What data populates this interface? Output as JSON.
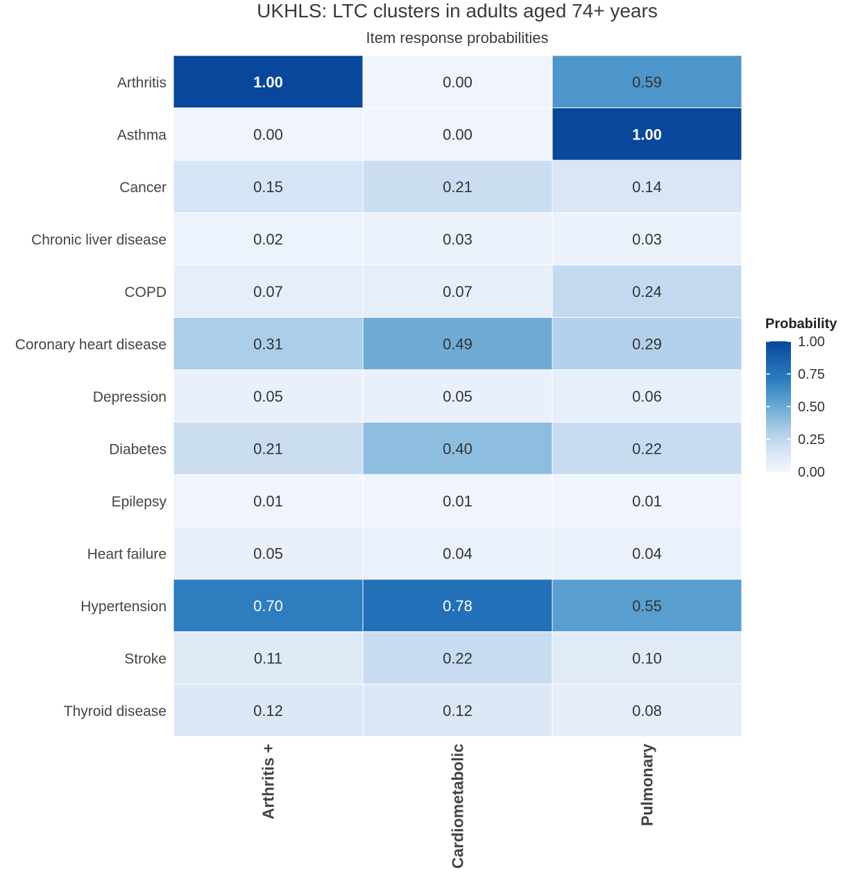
{
  "chart_data": {
    "type": "heatmap",
    "title": "UKHLS: LTC clusters in adults aged 74+ years",
    "subtitle": "Item response probabilities",
    "rows": [
      "Arthritis",
      "Asthma",
      "Cancer",
      "Chronic liver disease",
      "COPD",
      "Coronary heart disease",
      "Depression",
      "Diabetes",
      "Epilepsy",
      "Heart failure",
      "Hypertension",
      "Stroke",
      "Thyroid disease"
    ],
    "columns": [
      "Arthritis +",
      "Cardiometabolic",
      "Pulmonary"
    ],
    "values": [
      [
        1.0,
        0.0,
        0.59
      ],
      [
        0.0,
        0.0,
        1.0
      ],
      [
        0.15,
        0.21,
        0.14
      ],
      [
        0.02,
        0.03,
        0.03
      ],
      [
        0.07,
        0.07,
        0.24
      ],
      [
        0.31,
        0.49,
        0.29
      ],
      [
        0.05,
        0.05,
        0.06
      ],
      [
        0.21,
        0.4,
        0.22
      ],
      [
        0.01,
        0.01,
        0.01
      ],
      [
        0.05,
        0.04,
        0.04
      ],
      [
        0.7,
        0.78,
        0.55
      ],
      [
        0.11,
        0.22,
        0.1
      ],
      [
        0.12,
        0.12,
        0.08
      ]
    ],
    "legend": {
      "title": "Probability",
      "ticks": [
        "1.00",
        "0.75",
        "0.50",
        "0.25",
        "0.00"
      ],
      "range": [
        0,
        1
      ],
      "color_low": "#f0f5fd",
      "color_high": "#08479b",
      "placement": "right"
    },
    "grid": false
  }
}
